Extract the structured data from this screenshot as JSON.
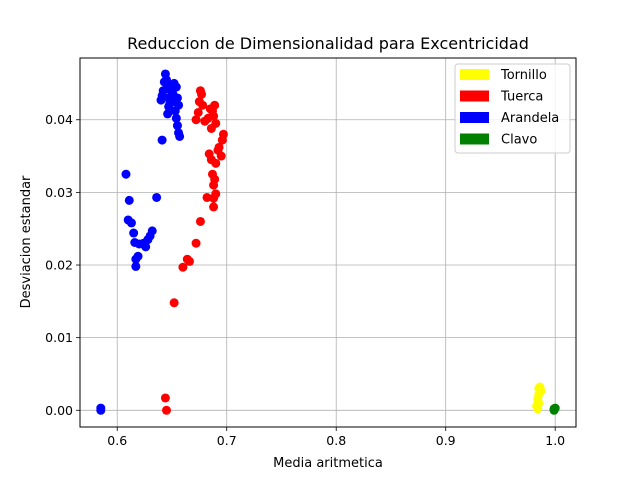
{
  "chart_data": {
    "type": "scatter",
    "title": "Reduccion de Dimensionalidad para Excentricidad",
    "xlabel": "Media aritmetica",
    "ylabel": "Desviacion estandar",
    "xlim": [
      0.566,
      1.019
    ],
    "ylim": [
      -0.0023,
      0.0485
    ],
    "xticks": [
      0.6,
      0.7,
      0.8,
      0.9,
      1.0
    ],
    "xtick_labels": [
      "0.6",
      "0.7",
      "0.8",
      "0.9",
      "1.0"
    ],
    "yticks": [
      0.0,
      0.01,
      0.02,
      0.03,
      0.04
    ],
    "ytick_labels": [
      "0.00",
      "0.01",
      "0.02",
      "0.03",
      "0.04"
    ],
    "grid": true,
    "legend_position": "top-right",
    "series": [
      {
        "name": "Tornillo",
        "color": "#ffff00",
        "points": [
          [
            0.985,
            0.003
          ],
          [
            0.986,
            0.0028
          ],
          [
            0.986,
            0.0025
          ],
          [
            0.985,
            0.0022
          ],
          [
            0.984,
            0.0015
          ],
          [
            0.985,
            0.001
          ],
          [
            0.983,
            0.0006
          ],
          [
            0.984,
            0.0002
          ],
          [
            0.987,
            0.0027
          ],
          [
            0.986,
            0.0032
          ]
        ]
      },
      {
        "name": "Tuerca",
        "color": "#ff0000",
        "points": [
          [
            0.644,
            0.0017
          ],
          [
            0.645,
            0.0
          ],
          [
            0.652,
            0.0148
          ],
          [
            0.66,
            0.0197
          ],
          [
            0.664,
            0.0208
          ],
          [
            0.666,
            0.0205
          ],
          [
            0.672,
            0.023
          ],
          [
            0.676,
            0.026
          ],
          [
            0.682,
            0.0293
          ],
          [
            0.684,
            0.0353
          ],
          [
            0.686,
            0.0345
          ],
          [
            0.687,
            0.0325
          ],
          [
            0.688,
            0.031
          ],
          [
            0.688,
            0.0292
          ],
          [
            0.688,
            0.028
          ],
          [
            0.69,
            0.0298
          ],
          [
            0.689,
            0.0318
          ],
          [
            0.69,
            0.034
          ],
          [
            0.692,
            0.0358
          ],
          [
            0.693,
            0.0362
          ],
          [
            0.695,
            0.035
          ],
          [
            0.696,
            0.0372
          ],
          [
            0.697,
            0.038
          ],
          [
            0.672,
            0.04
          ],
          [
            0.674,
            0.041
          ],
          [
            0.675,
            0.0425
          ],
          [
            0.676,
            0.044
          ],
          [
            0.677,
            0.0435
          ],
          [
            0.678,
            0.042
          ],
          [
            0.68,
            0.0398
          ],
          [
            0.683,
            0.0402
          ],
          [
            0.685,
            0.0415
          ],
          [
            0.687,
            0.0412
          ],
          [
            0.688,
            0.0405
          ],
          [
            0.689,
            0.042
          ],
          [
            0.686,
            0.0388
          ],
          [
            0.69,
            0.0395
          ]
        ]
      },
      {
        "name": "Arandela",
        "color": "#0000ff",
        "points": [
          [
            0.585,
            0.0
          ],
          [
            0.585,
            0.0003
          ],
          [
            0.608,
            0.0325
          ],
          [
            0.61,
            0.0262
          ],
          [
            0.611,
            0.0289
          ],
          [
            0.613,
            0.0258
          ],
          [
            0.615,
            0.0244
          ],
          [
            0.616,
            0.0231
          ],
          [
            0.617,
            0.0208
          ],
          [
            0.617,
            0.0198
          ],
          [
            0.619,
            0.0212
          ],
          [
            0.62,
            0.0229
          ],
          [
            0.624,
            0.023
          ],
          [
            0.626,
            0.0225
          ],
          [
            0.628,
            0.0235
          ],
          [
            0.63,
            0.024
          ],
          [
            0.632,
            0.0247
          ],
          [
            0.636,
            0.0293
          ],
          [
            0.641,
            0.0372
          ],
          [
            0.64,
            0.0427
          ],
          [
            0.641,
            0.0433
          ],
          [
            0.642,
            0.044
          ],
          [
            0.643,
            0.0452
          ],
          [
            0.644,
            0.0463
          ],
          [
            0.645,
            0.0455
          ],
          [
            0.646,
            0.0445
          ],
          [
            0.647,
            0.043
          ],
          [
            0.647,
            0.0418
          ],
          [
            0.646,
            0.0408
          ],
          [
            0.648,
            0.0422
          ],
          [
            0.649,
            0.044
          ],
          [
            0.65,
            0.0448
          ],
          [
            0.651,
            0.0435
          ],
          [
            0.652,
            0.0425
          ],
          [
            0.653,
            0.0412
          ],
          [
            0.654,
            0.0402
          ],
          [
            0.655,
            0.0392
          ],
          [
            0.656,
            0.0382
          ],
          [
            0.657,
            0.0377
          ],
          [
            0.655,
            0.043
          ],
          [
            0.654,
            0.0445
          ],
          [
            0.652,
            0.045
          ],
          [
            0.656,
            0.042
          ]
        ]
      },
      {
        "name": "Clavo",
        "color": "#008000",
        "points": [
          [
            0.999,
            0.0002
          ],
          [
            0.999,
            0.0001
          ],
          [
            1.0,
            0.0003
          ],
          [
            0.999,
            0.0
          ]
        ]
      }
    ]
  }
}
